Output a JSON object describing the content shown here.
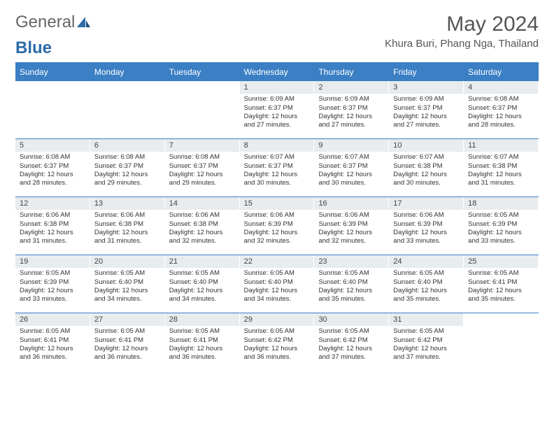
{
  "brand": {
    "general": "General",
    "blue": "Blue"
  },
  "title": "May 2024",
  "location": "Khura Buri, Phang Nga, Thailand",
  "colors": {
    "header_bar": "#3b7fc4",
    "daynum_bg": "#e8ecef",
    "text": "#333333",
    "title_text": "#555555"
  },
  "weekdays": [
    "Sunday",
    "Monday",
    "Tuesday",
    "Wednesday",
    "Thursday",
    "Friday",
    "Saturday"
  ],
  "weeks": [
    [
      {
        "n": "",
        "sr": "",
        "ss": "",
        "dl": ""
      },
      {
        "n": "",
        "sr": "",
        "ss": "",
        "dl": ""
      },
      {
        "n": "",
        "sr": "",
        "ss": "",
        "dl": ""
      },
      {
        "n": "1",
        "sr": "6:09 AM",
        "ss": "6:37 PM",
        "dl": "12 hours and 27 minutes."
      },
      {
        "n": "2",
        "sr": "6:09 AM",
        "ss": "6:37 PM",
        "dl": "12 hours and 27 minutes."
      },
      {
        "n": "3",
        "sr": "6:09 AM",
        "ss": "6:37 PM",
        "dl": "12 hours and 27 minutes."
      },
      {
        "n": "4",
        "sr": "6:08 AM",
        "ss": "6:37 PM",
        "dl": "12 hours and 28 minutes."
      }
    ],
    [
      {
        "n": "5",
        "sr": "6:08 AM",
        "ss": "6:37 PM",
        "dl": "12 hours and 28 minutes."
      },
      {
        "n": "6",
        "sr": "6:08 AM",
        "ss": "6:37 PM",
        "dl": "12 hours and 29 minutes."
      },
      {
        "n": "7",
        "sr": "6:08 AM",
        "ss": "6:37 PM",
        "dl": "12 hours and 29 minutes."
      },
      {
        "n": "8",
        "sr": "6:07 AM",
        "ss": "6:37 PM",
        "dl": "12 hours and 30 minutes."
      },
      {
        "n": "9",
        "sr": "6:07 AM",
        "ss": "6:37 PM",
        "dl": "12 hours and 30 minutes."
      },
      {
        "n": "10",
        "sr": "6:07 AM",
        "ss": "6:38 PM",
        "dl": "12 hours and 30 minutes."
      },
      {
        "n": "11",
        "sr": "6:07 AM",
        "ss": "6:38 PM",
        "dl": "12 hours and 31 minutes."
      }
    ],
    [
      {
        "n": "12",
        "sr": "6:06 AM",
        "ss": "6:38 PM",
        "dl": "12 hours and 31 minutes."
      },
      {
        "n": "13",
        "sr": "6:06 AM",
        "ss": "6:38 PM",
        "dl": "12 hours and 31 minutes."
      },
      {
        "n": "14",
        "sr": "6:06 AM",
        "ss": "6:38 PM",
        "dl": "12 hours and 32 minutes."
      },
      {
        "n": "15",
        "sr": "6:06 AM",
        "ss": "6:39 PM",
        "dl": "12 hours and 32 minutes."
      },
      {
        "n": "16",
        "sr": "6:06 AM",
        "ss": "6:39 PM",
        "dl": "12 hours and 32 minutes."
      },
      {
        "n": "17",
        "sr": "6:06 AM",
        "ss": "6:39 PM",
        "dl": "12 hours and 33 minutes."
      },
      {
        "n": "18",
        "sr": "6:05 AM",
        "ss": "6:39 PM",
        "dl": "12 hours and 33 minutes."
      }
    ],
    [
      {
        "n": "19",
        "sr": "6:05 AM",
        "ss": "6:39 PM",
        "dl": "12 hours and 33 minutes."
      },
      {
        "n": "20",
        "sr": "6:05 AM",
        "ss": "6:40 PM",
        "dl": "12 hours and 34 minutes."
      },
      {
        "n": "21",
        "sr": "6:05 AM",
        "ss": "6:40 PM",
        "dl": "12 hours and 34 minutes."
      },
      {
        "n": "22",
        "sr": "6:05 AM",
        "ss": "6:40 PM",
        "dl": "12 hours and 34 minutes."
      },
      {
        "n": "23",
        "sr": "6:05 AM",
        "ss": "6:40 PM",
        "dl": "12 hours and 35 minutes."
      },
      {
        "n": "24",
        "sr": "6:05 AM",
        "ss": "6:40 PM",
        "dl": "12 hours and 35 minutes."
      },
      {
        "n": "25",
        "sr": "6:05 AM",
        "ss": "6:41 PM",
        "dl": "12 hours and 35 minutes."
      }
    ],
    [
      {
        "n": "26",
        "sr": "6:05 AM",
        "ss": "6:41 PM",
        "dl": "12 hours and 36 minutes."
      },
      {
        "n": "27",
        "sr": "6:05 AM",
        "ss": "6:41 PM",
        "dl": "12 hours and 36 minutes."
      },
      {
        "n": "28",
        "sr": "6:05 AM",
        "ss": "6:41 PM",
        "dl": "12 hours and 36 minutes."
      },
      {
        "n": "29",
        "sr": "6:05 AM",
        "ss": "6:42 PM",
        "dl": "12 hours and 36 minutes."
      },
      {
        "n": "30",
        "sr": "6:05 AM",
        "ss": "6:42 PM",
        "dl": "12 hours and 37 minutes."
      },
      {
        "n": "31",
        "sr": "6:05 AM",
        "ss": "6:42 PM",
        "dl": "12 hours and 37 minutes."
      },
      {
        "n": "",
        "sr": "",
        "ss": "",
        "dl": ""
      }
    ]
  ],
  "labels": {
    "sunrise": "Sunrise:",
    "sunset": "Sunset:",
    "daylight": "Daylight:"
  }
}
